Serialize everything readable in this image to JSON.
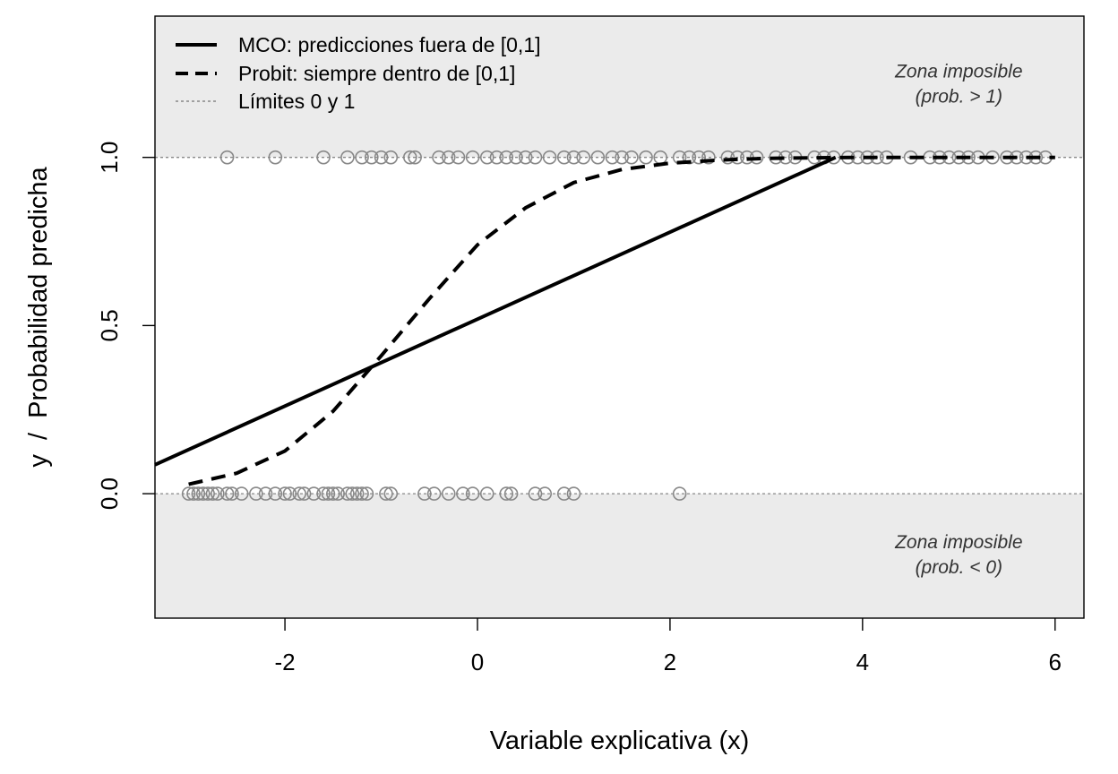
{
  "chart_data": {
    "type": "line",
    "xlabel": "Variable explicativa (x)",
    "ylabel": "y  /  Probabilidad predicha",
    "xlim": [
      -3.35,
      6.3
    ],
    "ylim": [
      -0.37,
      1.42
    ],
    "x_ticks": [
      -2,
      0,
      2,
      4,
      6
    ],
    "y_ticks": [
      0.0,
      0.5,
      1.0
    ],
    "x_tick_labels": [
      "-2",
      "0",
      "2",
      "4",
      "6"
    ],
    "y_tick_labels": [
      "0.0",
      "0.5",
      "1.0"
    ],
    "grid": false,
    "legend_position": "top-left",
    "series": [
      {
        "name": "MCO: predicciones fuera de [0,1]",
        "style": "solid",
        "color": "#000000",
        "x": [
          -3.35,
          3.72
        ],
        "y": [
          0.086,
          1.0
        ]
      },
      {
        "name": "Probit: siempre dentro de [0,1]",
        "style": "dashed",
        "color": "#000000",
        "x": [
          -3.0,
          -2.5,
          -2.0,
          -1.5,
          -1.0,
          -0.5,
          0.0,
          0.5,
          1.0,
          1.5,
          2.0,
          2.5,
          3.0,
          3.5,
          4.0,
          4.5,
          5.0,
          5.5,
          6.0
        ],
        "y": [
          0.028,
          0.061,
          0.127,
          0.245,
          0.41,
          0.58,
          0.74,
          0.85,
          0.925,
          0.964,
          0.983,
          0.992,
          0.997,
          0.999,
          1.0,
          1.0,
          1.0,
          1.0,
          1.0
        ]
      },
      {
        "name": "Límites 0 y 1",
        "style": "dotted",
        "color": "#888888",
        "y_values": [
          0,
          1
        ]
      }
    ],
    "observations": {
      "color": "#888888",
      "y0_x": [
        -3.0,
        -2.95,
        -2.9,
        -2.85,
        -2.8,
        -2.75,
        -2.7,
        -2.6,
        -2.55,
        -2.45,
        -2.3,
        -2.2,
        -2.1,
        -2.0,
        -1.95,
        -1.85,
        -1.8,
        -1.7,
        -1.6,
        -1.55,
        -1.5,
        -1.45,
        -1.35,
        -1.3,
        -1.25,
        -1.2,
        -1.15,
        -0.95,
        -0.9,
        -0.55,
        -0.45,
        -0.3,
        -0.15,
        -0.05,
        0.1,
        0.3,
        0.35,
        0.6,
        0.7,
        0.9,
        1.0,
        2.1
      ],
      "y1_x": [
        -2.6,
        -2.1,
        -1.6,
        -1.35,
        -1.2,
        -1.1,
        -1.0,
        -0.9,
        -0.7,
        -0.65,
        -0.4,
        -0.3,
        -0.2,
        -0.05,
        0.1,
        0.2,
        0.3,
        0.4,
        0.5,
        0.6,
        0.75,
        0.9,
        1.0,
        1.1,
        1.25,
        1.4,
        1.5,
        1.6,
        1.75,
        1.9,
        2.1,
        2.2,
        2.3,
        2.4,
        2.6,
        2.7,
        2.8,
        2.9,
        3.1,
        3.2,
        3.3,
        3.5,
        3.6,
        3.7,
        3.85,
        3.95,
        4.05,
        4.15,
        4.25,
        4.5,
        4.7,
        4.8,
        4.9,
        5.0,
        5.1,
        5.2,
        5.35,
        5.5,
        5.6,
        5.7,
        5.8,
        5.9
      ]
    },
    "annotations": [
      {
        "line1": "Zona imposible",
        "line2": "(prob. > 1)",
        "x": 5.0,
        "y": 1.2
      },
      {
        "line1": "Zona imposible",
        "line2": "(prob. < 0)",
        "x": 5.0,
        "y": -0.2
      }
    ],
    "shaded_regions": [
      {
        "from": 1.0,
        "to": 1.42,
        "color": "#ebebeb"
      },
      {
        "from": -0.37,
        "to": 0.0,
        "color": "#ebebeb"
      }
    ]
  }
}
